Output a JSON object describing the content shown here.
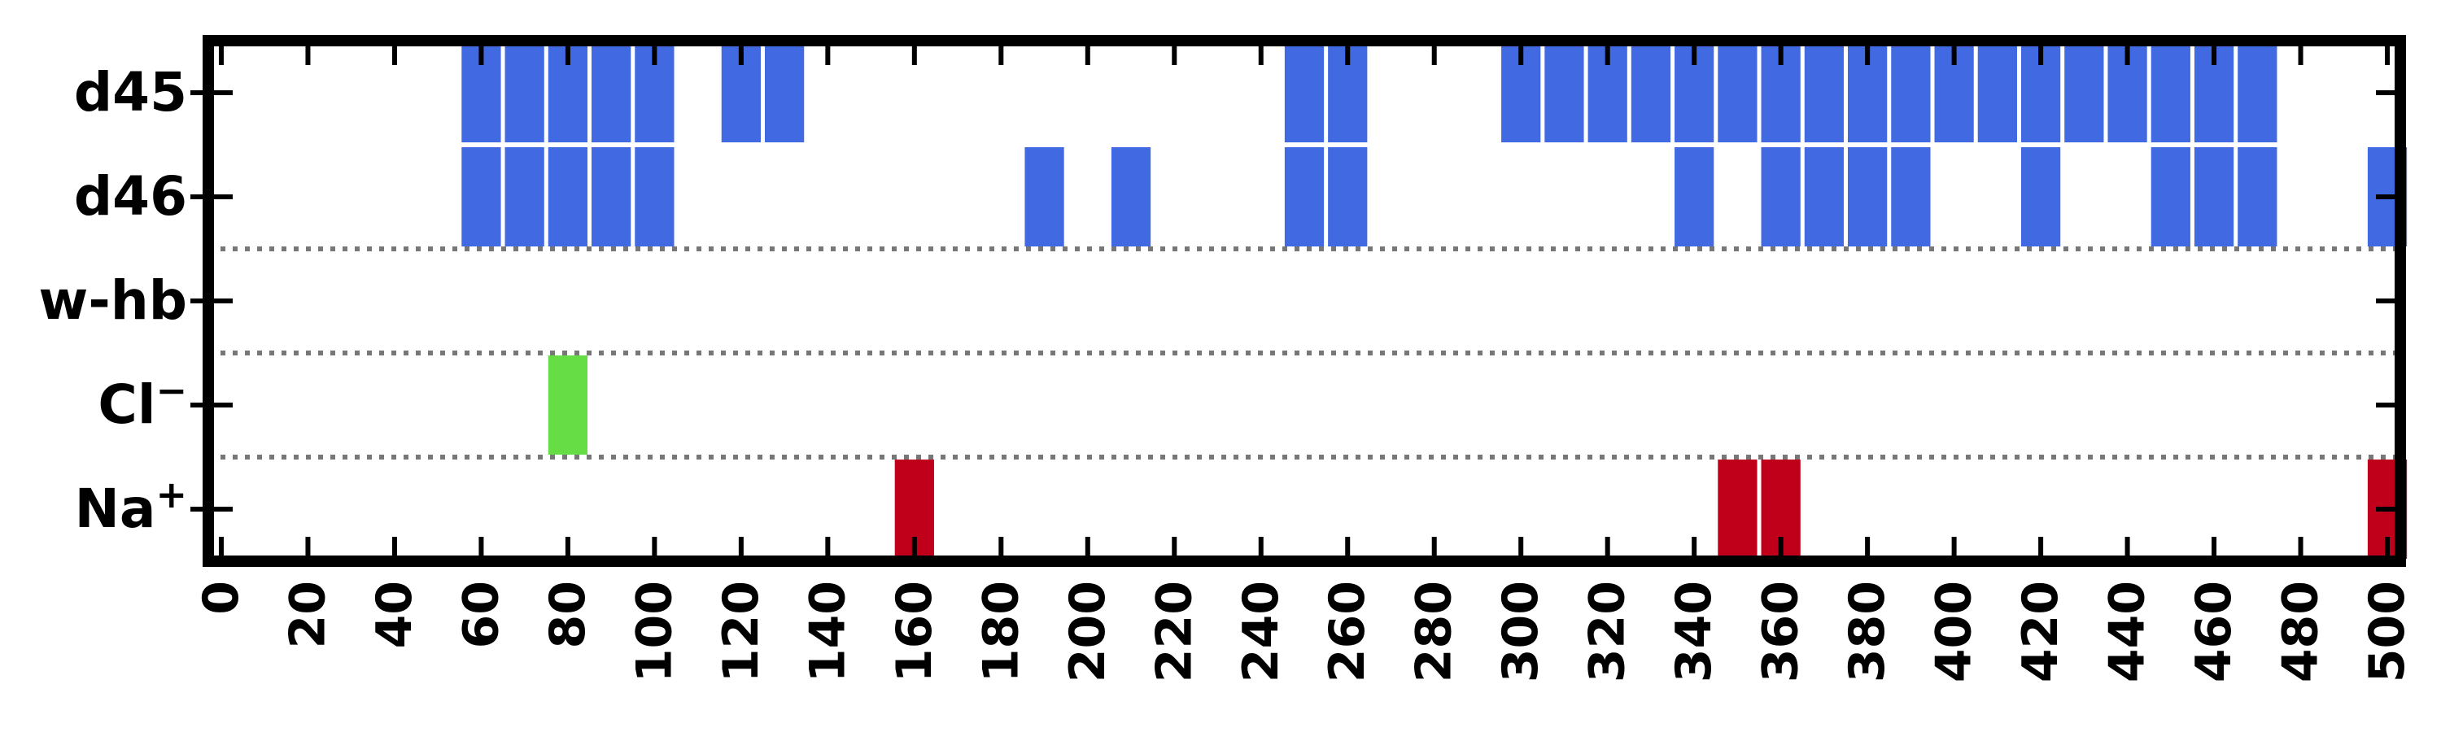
{
  "chart_data": {
    "type": "heatmap",
    "title": "",
    "xlabel": "",
    "ylabel": "",
    "xlim": [
      -3,
      503
    ],
    "x_ticks": [
      0,
      20,
      40,
      60,
      80,
      100,
      120,
      140,
      160,
      180,
      200,
      220,
      240,
      260,
      280,
      300,
      320,
      340,
      360,
      380,
      400,
      420,
      440,
      460,
      480,
      500
    ],
    "bin_width": 10,
    "grid": false,
    "rows": [
      {
        "label": "d45",
        "group": "dna",
        "color": "#4169e1",
        "bins": [
          60,
          70,
          80,
          90,
          100,
          120,
          130,
          250,
          260,
          300,
          310,
          320,
          330,
          340,
          350,
          360,
          370,
          380,
          390,
          400,
          410,
          420,
          430,
          440,
          450,
          460,
          470
        ]
      },
      {
        "label": "d46",
        "group": "dna",
        "color": "#4169e1",
        "bins": [
          60,
          70,
          80,
          90,
          100,
          190,
          210,
          250,
          260,
          340,
          360,
          370,
          380,
          390,
          420,
          450,
          460,
          470,
          500
        ]
      },
      {
        "label": "w-hb",
        "group": "water",
        "color": "#66dd44",
        "bins": []
      },
      {
        "label": "Cl",
        "label_sup": "−",
        "group": "cl",
        "color": "#66dd44",
        "bins": [
          80
        ]
      },
      {
        "label": "Na",
        "label_sup": "+",
        "group": "na",
        "color": "#c0001a",
        "bins": [
          160,
          350,
          360,
          500
        ]
      }
    ]
  }
}
